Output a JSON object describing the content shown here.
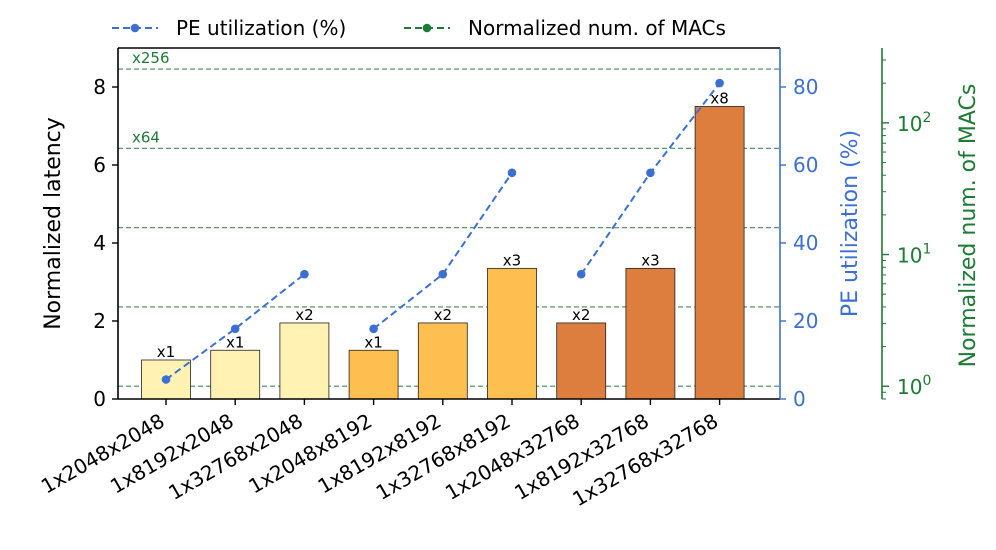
{
  "chart_data": {
    "type": "bar",
    "categories": [
      "1x2048x2048",
      "1x8192x2048",
      "1x32768x2048",
      "1x2048x8192",
      "1x8192x8192",
      "1x32768x8192",
      "1x2048x32768",
      "1x8192x32768",
      "1x32768x32768"
    ],
    "bar_labels": [
      "x1",
      "x1",
      "x2",
      "x1",
      "x2",
      "x3",
      "x2",
      "x3",
      "x8"
    ],
    "series": [
      {
        "name": "Normalized latency",
        "axis": "left",
        "values": [
          1.0,
          1.25,
          1.95,
          1.25,
          1.95,
          3.35,
          1.95,
          3.35,
          7.5
        ],
        "colors": [
          "#fff2b3",
          "#fff2b3",
          "#fff2b3",
          "#fdbf4f",
          "#fdbf4f",
          "#fdbf4f",
          "#de7e3e",
          "#de7e3e",
          "#de7e3e"
        ]
      },
      {
        "name": "PE utilization (%)",
        "axis": "right1",
        "color": "#3b6fd4",
        "segments": [
          {
            "x_index": [
              0,
              1,
              2
            ],
            "values": [
              5,
              18,
              32
            ]
          },
          {
            "x_index": [
              3,
              4,
              5
            ],
            "values": [
              18,
              32,
              58
            ]
          },
          {
            "x_index": [
              6,
              7,
              8
            ],
            "values": [
              32,
              58,
              81
            ]
          }
        ]
      },
      {
        "name": "Normalized num. of MACs",
        "axis": "right2",
        "color": "#1e7b34",
        "hlines": [
          1,
          4,
          16,
          64,
          256
        ],
        "annotations": [
          {
            "value": 64,
            "text": "x64"
          },
          {
            "value": 256,
            "text": "x256"
          }
        ]
      }
    ],
    "axes": {
      "left": {
        "label": "Normalized latency",
        "ylim": [
          0,
          9
        ],
        "ticks": [
          0,
          2,
          4,
          6,
          8
        ],
        "tick_labels": [
          "0",
          "2",
          "4",
          "6",
          "8"
        ]
      },
      "right1": {
        "label": "PE utilization (%)",
        "ylim": [
          0,
          90
        ],
        "ticks": [
          0,
          20,
          40,
          60,
          80
        ],
        "tick_labels": [
          "0",
          "20",
          "40",
          "60",
          "80"
        ],
        "color": "#3b6fd4"
      },
      "right2": {
        "label": "Normalized num. of MACs",
        "scale": "log",
        "ylim": [
          0.8,
          370
        ],
        "ticks": [
          1,
          10,
          100
        ],
        "tick_labels": [
          "10",
          "10",
          "10"
        ],
        "tick_exponents": [
          "0",
          "1",
          "2"
        ],
        "color": "#1e7b34"
      }
    },
    "legend": {
      "position": "top",
      "entries": [
        {
          "label": "PE utilization (%)",
          "color": "#3b6fd4"
        },
        {
          "label": "Normalized num. of MACs",
          "color": "#1e7b34"
        }
      ]
    }
  }
}
